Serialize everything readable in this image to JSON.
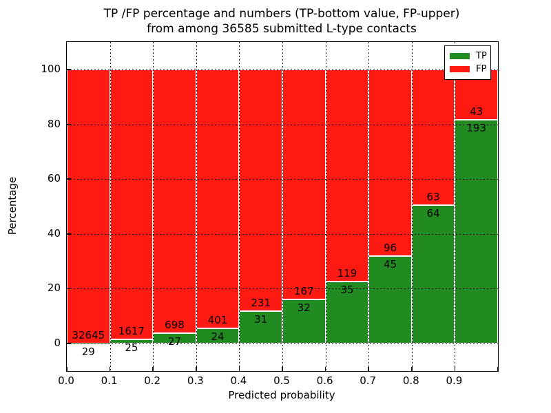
{
  "title": {
    "line1": "TP /FP percentage and numbers (TP-bottom value, FP-upper)",
    "line2": "from among 36585 submitted L-type contacts"
  },
  "chart_data": {
    "type": "bar",
    "stacked": true,
    "normalized": "each bar normalized to 100%, bar labels show raw counts",
    "total_contacts": 36585,
    "categories": [
      "0.0-0.1",
      "0.1-0.2",
      "0.2-0.3",
      "0.3-0.4",
      "0.4-0.5",
      "0.5-0.6",
      "0.6-0.7",
      "0.7-0.8",
      "0.8-0.9",
      "0.9-1.0"
    ],
    "series": [
      {
        "name": "TP",
        "color": "#218a21",
        "values": [
          29,
          25,
          27,
          24,
          31,
          32,
          35,
          45,
          64,
          193
        ]
      },
      {
        "name": "FP",
        "color": "#fc1a13",
        "values": [
          32645,
          1617,
          698,
          401,
          231,
          167,
          119,
          96,
          63,
          43
        ]
      }
    ],
    "tp_percent_per_bin": [
      0.09,
      1.52,
      3.72,
      5.65,
      11.83,
      16.08,
      22.73,
      31.91,
      50.39,
      81.78
    ],
    "title": "TP /FP percentage and numbers (TP-bottom value, FP-upper) from among 36585 submitted L-type contacts",
    "xlabel": "Predicted probability",
    "ylabel": "Percentage",
    "x_tick_labels": [
      "0.0",
      "0.1",
      "0.2",
      "0.3",
      "0.4",
      "0.5",
      "0.6",
      "0.7",
      "0.8",
      "0.9"
    ],
    "y_tick_labels": [
      "0",
      "20",
      "40",
      "60",
      "80",
      "100"
    ],
    "y_ticks": [
      0,
      20,
      40,
      60,
      80,
      100
    ],
    "xlim": [
      0.0,
      1.0
    ],
    "ylim": [
      -10,
      110
    ],
    "grid": "dotted, both axes, drawn over bars",
    "legend": {
      "position": "upper right",
      "entries": [
        "TP",
        "FP"
      ]
    }
  }
}
